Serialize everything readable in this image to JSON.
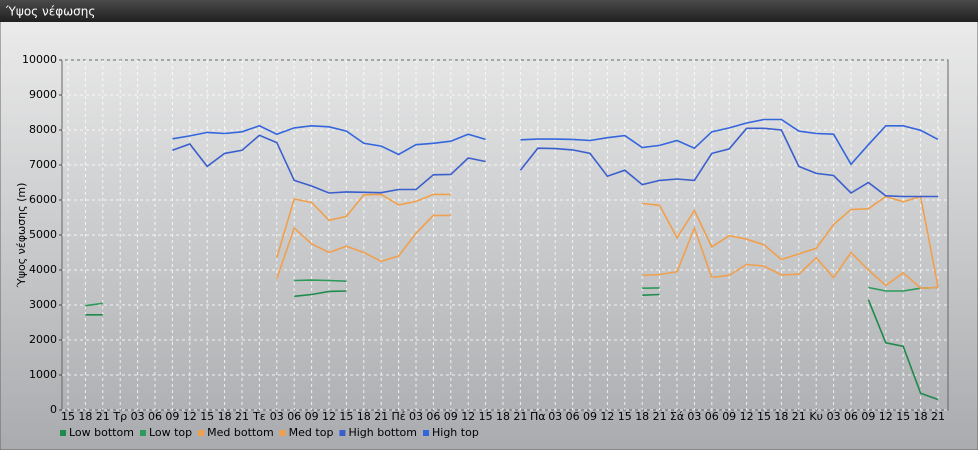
{
  "chart_data": {
    "type": "line",
    "title": "Ύψος νέφωσης",
    "y_label": "Ύψος νέφωσης (m)",
    "categories": [
      "15",
      "18",
      "21",
      "Τρ",
      "03",
      "06",
      "09",
      "12",
      "15",
      "18",
      "21",
      "Τε",
      "03",
      "06",
      "09",
      "12",
      "15",
      "18",
      "21",
      "Πέ",
      "03",
      "06",
      "09",
      "12",
      "15",
      "18",
      "21",
      "Πα",
      "03",
      "06",
      "09",
      "12",
      "15",
      "18",
      "21",
      "Σά",
      "03",
      "06",
      "09",
      "12",
      "15",
      "18",
      "21",
      "Κυ",
      "03",
      "06",
      "09",
      "12",
      "15",
      "18",
      "21"
    ],
    "ylim": [
      0,
      10000
    ],
    "yticks": [
      0,
      1000,
      2000,
      3000,
      4000,
      5000,
      6000,
      7000,
      8000,
      9000,
      10000
    ],
    "grid": true,
    "series": [
      {
        "name": "Low bottom",
        "color": "#1f8a4c",
        "values": [
          null,
          2720,
          2720,
          null,
          null,
          null,
          null,
          null,
          null,
          null,
          null,
          null,
          null,
          3250,
          3300,
          3390,
          3400,
          null,
          null,
          null,
          null,
          null,
          null,
          null,
          null,
          null,
          null,
          null,
          null,
          null,
          null,
          null,
          null,
          3280,
          3300,
          null,
          null,
          null,
          null,
          null,
          null,
          null,
          null,
          null,
          null,
          null,
          3150,
          1920,
          1820,
          480,
          300
        ]
      },
      {
        "name": "Low top",
        "color": "#2e9a5a",
        "values": [
          null,
          2980,
          3050,
          null,
          null,
          null,
          null,
          null,
          null,
          null,
          null,
          null,
          null,
          3700,
          3710,
          3700,
          3680,
          null,
          null,
          null,
          null,
          null,
          null,
          null,
          null,
          null,
          null,
          null,
          null,
          null,
          null,
          null,
          null,
          3480,
          3490,
          null,
          null,
          null,
          null,
          null,
          null,
          null,
          null,
          null,
          null,
          null,
          3500,
          3400,
          3400,
          3480,
          3500
        ]
      },
      {
        "name": "Med bottom",
        "color": "#f0a050",
        "values": [
          null,
          null,
          null,
          null,
          null,
          null,
          null,
          null,
          null,
          null,
          null,
          null,
          3750,
          5200,
          4750,
          4500,
          4680,
          4500,
          4250,
          4400,
          5050,
          5560,
          5560,
          null,
          null,
          null,
          null,
          null,
          null,
          null,
          null,
          null,
          null,
          3850,
          3870,
          3950,
          5200,
          3790,
          3850,
          4160,
          4110,
          3860,
          3880,
          4350,
          3780,
          4500,
          4000,
          3560,
          3920,
          3480,
          3500
        ]
      },
      {
        "name": "Med top",
        "color": "#f0a04c",
        "values": [
          null,
          null,
          null,
          null,
          null,
          null,
          null,
          null,
          null,
          null,
          null,
          null,
          4350,
          6030,
          5930,
          5420,
          5530,
          6150,
          6160,
          5860,
          5960,
          6160,
          6160,
          null,
          null,
          null,
          null,
          null,
          null,
          null,
          null,
          null,
          null,
          5900,
          5850,
          4920,
          5700,
          4660,
          4980,
          4880,
          4720,
          4300,
          4460,
          4620,
          5300,
          5730,
          5750,
          6100,
          5950,
          6100,
          3520
        ]
      },
      {
        "name": "High bottom",
        "color": "#3a5fcd",
        "values": [
          null,
          null,
          null,
          null,
          null,
          null,
          7420,
          7600,
          6960,
          7330,
          7420,
          7850,
          7640,
          6560,
          6400,
          6200,
          6230,
          6220,
          6210,
          6300,
          6300,
          6720,
          6730,
          7200,
          7100,
          null,
          6850,
          7480,
          7470,
          7430,
          7330,
          6680,
          6850,
          6440,
          6560,
          6600,
          6560,
          7330,
          7460,
          8050,
          8050,
          8000,
          6960,
          6760,
          6700,
          6200,
          6500,
          6120,
          6100,
          6100,
          6100
        ]
      },
      {
        "name": "High top",
        "color": "#3366dd",
        "values": [
          null,
          null,
          null,
          null,
          null,
          null,
          7750,
          7830,
          7930,
          7900,
          7950,
          8120,
          7880,
          8060,
          8120,
          8090,
          7970,
          7620,
          7540,
          7300,
          7580,
          7620,
          7680,
          7880,
          7730,
          null,
          7720,
          7740,
          7740,
          7730,
          7700,
          7780,
          7840,
          7500,
          7560,
          7700,
          7480,
          7950,
          8060,
          8200,
          8300,
          8300,
          7970,
          7900,
          7880,
          7020,
          7580,
          8120,
          8120,
          7990,
          7730
        ]
      }
    ]
  }
}
